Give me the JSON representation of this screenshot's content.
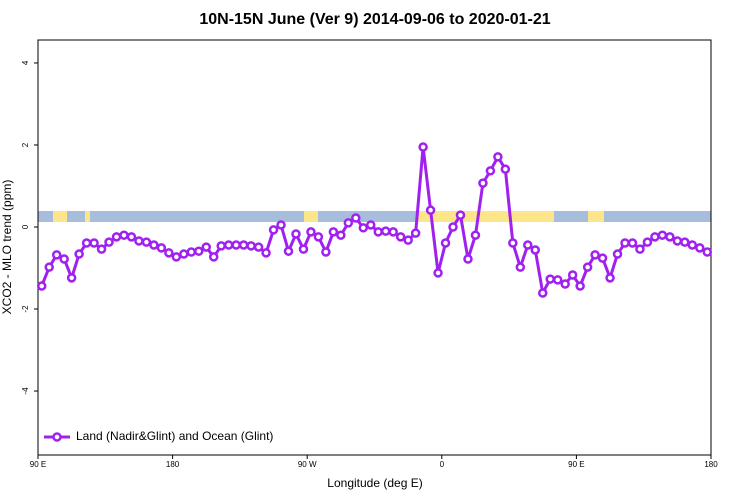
{
  "chart_data": {
    "type": "line",
    "title": "10N-15N June (Ver 9)   2014-09-06 to 2020-01-21",
    "xlabel": "Longitude (deg E)",
    "ylabel": "XCO2 - MLO trend (ppm)",
    "xlim": [
      90,
      540
    ],
    "xticks": [
      {
        "value": 90,
        "label": "90 E"
      },
      180,
      {
        "value": 270,
        "label": "90 W"
      },
      {
        "value": 360,
        "label": "0"
      },
      {
        "value": 450,
        "label": "90 E"
      },
      {
        "value": 540,
        "label": "180"
      }
    ],
    "ylim": [
      -5.56,
      4.56
    ],
    "yticks": [
      -4,
      -2,
      0,
      2,
      4
    ],
    "legend": "bottom left",
    "x": [
      92.5,
      97.5,
      102.5,
      107.5,
      112.5,
      117.5,
      122.5,
      127.5,
      132.5,
      137.5,
      142.5,
      147.5,
      152.5,
      157.5,
      162.5,
      167.5,
      172.5,
      177.5,
      182.5,
      187.5,
      192.5,
      197.5,
      202.5,
      207.5,
      212.5,
      217.5,
      222.5,
      227.5,
      232.5,
      237.5,
      242.5,
      247.5,
      252.5,
      257.5,
      262.5,
      267.5,
      272.5,
      277.5,
      282.5,
      287.5,
      292.5,
      297.5,
      302.5,
      307.5,
      312.5,
      317.5,
      322.5,
      327.5,
      332.5,
      337.5,
      342.5,
      347.5,
      352.5,
      357.5,
      362.5,
      367.5,
      372.5,
      377.5,
      382.5,
      387.5,
      392.5,
      397.5,
      402.5,
      407.5,
      412.5,
      417.5,
      422.5,
      427.5,
      432.5,
      437.5,
      442.5,
      447.5,
      452.5,
      457.5,
      462.5,
      467.5,
      472.5,
      477.5,
      482.5,
      487.5,
      492.5,
      497.5,
      502.5,
      507.5,
      512.5,
      517.5,
      522.5,
      527.5,
      532.5,
      537.5
    ],
    "series": [
      {
        "name": "Land (Nadir&Glint) and Ocean (Glint)",
        "color": "#a020f0",
        "values": [
          -1.44,
          -0.98,
          -0.68,
          -0.78,
          -1.24,
          -0.66,
          -0.39,
          -0.39,
          -0.54,
          -0.37,
          -0.24,
          -0.2,
          -0.24,
          -0.34,
          -0.37,
          -0.44,
          -0.51,
          -0.63,
          -0.73,
          -0.66,
          -0.61,
          -0.59,
          -0.49,
          -0.73,
          -0.46,
          -0.44,
          -0.44,
          -0.44,
          -0.46,
          -0.49,
          -0.63,
          -0.07,
          0.05,
          -0.59,
          -0.17,
          -0.54,
          -0.12,
          -0.24,
          -0.61,
          -0.12,
          -0.2,
          0.1,
          0.22,
          -0.02,
          0.05,
          -0.12,
          -0.1,
          -0.12,
          -0.24,
          -0.32,
          -0.15,
          1.95,
          0.41,
          -1.12,
          -0.39,
          0,
          0.29,
          -0.78,
          -0.2,
          1.07,
          1.37,
          1.71,
          1.41,
          -0.39,
          -0.98,
          -0.44,
          -0.56,
          -1.61,
          -1.27,
          -1.29,
          -1.39,
          -1.17,
          -1.44,
          -0.98,
          -0.68,
          -0.76,
          -1.24,
          -0.66,
          -0.39,
          -0.39,
          -0.54,
          -0.37,
          -0.24,
          -0.2,
          -0.24,
          -0.34,
          -0.37,
          -0.44,
          -0.51,
          -0.61
        ]
      }
    ]
  }
}
